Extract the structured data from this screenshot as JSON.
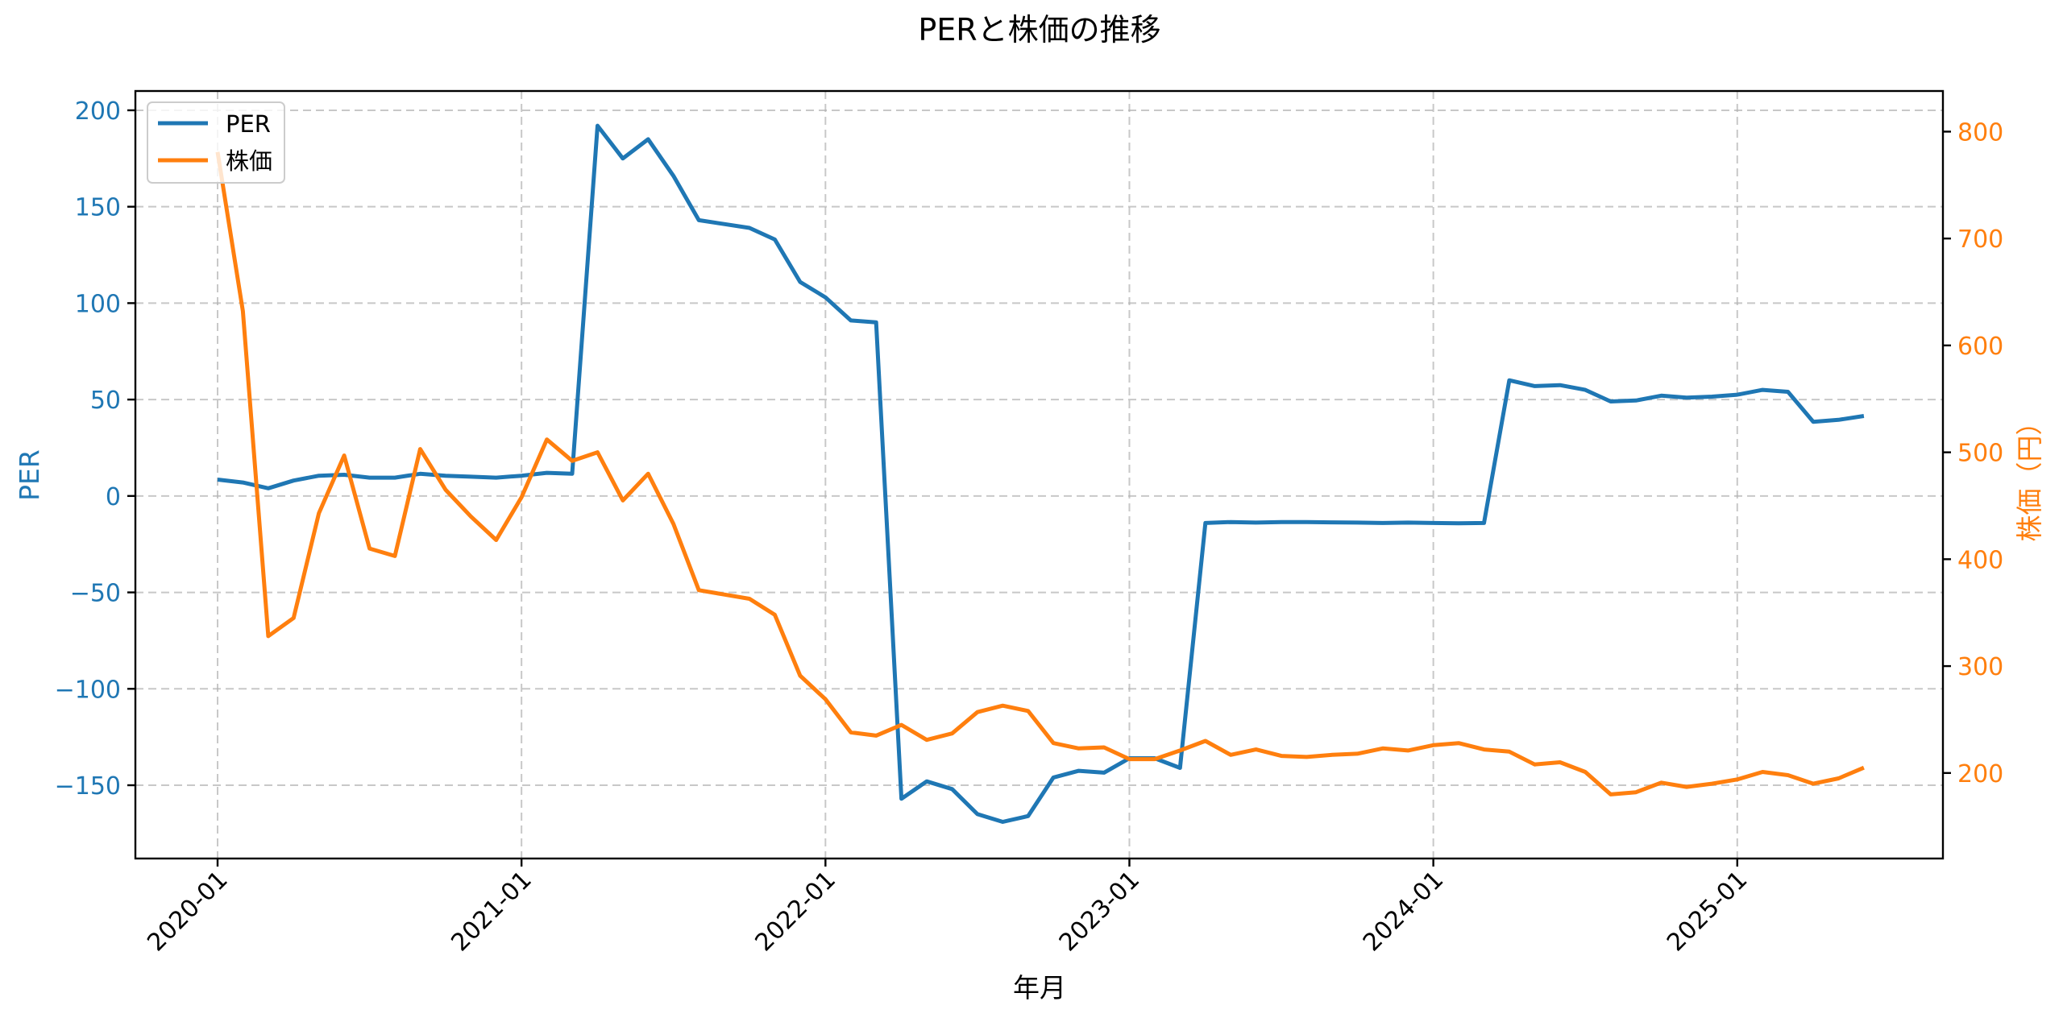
{
  "chart_data": {
    "type": "line",
    "title": "PERと株価の推移",
    "xlabel": "年月",
    "ylabel": "PER",
    "ylabel_right": "株価（円）",
    "grid": true,
    "grid_style": "dashed",
    "legend_position": "upper left",
    "legend": [
      "PER",
      "株価"
    ],
    "colors": {
      "PER": "#1f77b4",
      "株価": "#ff7f0e"
    },
    "x_tick_labels": [
      "2020-01",
      "2021-01",
      "2022-01",
      "2023-01",
      "2024-01",
      "2025-01"
    ],
    "x_tick_index": [
      0,
      12,
      24,
      36,
      48,
      60
    ],
    "y_left_ticks": [
      200,
      150,
      100,
      50,
      0,
      -50,
      -100,
      -150
    ],
    "y_left_tick_labels": [
      "200",
      "150",
      "100",
      "50",
      "0",
      "−50",
      "−100",
      "−150"
    ],
    "y_left_lim": [
      -188,
      210
    ],
    "y_right_ticks": [
      800,
      700,
      600,
      500,
      400,
      300,
      200
    ],
    "y_right_tick_labels": [
      "800",
      "700",
      "600",
      "500",
      "400",
      "300",
      "200"
    ],
    "y_right_lim": [
      120,
      838
    ],
    "x": [
      "2020-01",
      "2020-02",
      "2020-03",
      "2020-04",
      "2020-05",
      "2020-06",
      "2020-07",
      "2020-08",
      "2020-09",
      "2020-10",
      "2020-11",
      "2020-12",
      "2021-01",
      "2021-02",
      "2021-03",
      "2021-04",
      "2021-05",
      "2021-06",
      "2021-07",
      "2021-08",
      "2021-09",
      "2021-10",
      "2021-11",
      "2021-12",
      "2022-01",
      "2022-02",
      "2022-03",
      "2022-04",
      "2022-05",
      "2022-06",
      "2022-07",
      "2022-08",
      "2022-09",
      "2022-10",
      "2022-11",
      "2022-12",
      "2023-01",
      "2023-02",
      "2023-03",
      "2023-04",
      "2023-05",
      "2023-06",
      "2023-07",
      "2023-08",
      "2023-09",
      "2023-10",
      "2023-11",
      "2023-12",
      "2024-01",
      "2024-02",
      "2024-03",
      "2024-04",
      "2024-05",
      "2024-06",
      "2024-07",
      "2024-08",
      "2024-09",
      "2024-10",
      "2024-11",
      "2024-12",
      "2025-01",
      "2025-02",
      "2025-03",
      "2025-04",
      "2025-05",
      "2025-06"
    ],
    "series": [
      {
        "name": "PER",
        "axis": "left",
        "values": [
          8.5,
          7,
          4,
          8,
          10.5,
          11,
          9.5,
          9.5,
          11.5,
          10.5,
          10,
          9.5,
          10.5,
          12,
          11.5,
          192,
          175,
          185,
          166,
          143,
          141,
          139,
          133,
          111,
          103,
          91,
          90,
          -157,
          -148,
          -152,
          -165,
          -169,
          -166,
          -146,
          -142.5,
          -143.5,
          -136,
          -136,
          -141,
          -14,
          -13.5,
          -13.8,
          -13.5,
          -13.5,
          -13.7,
          -13.8,
          -14,
          -13.8,
          -14,
          -14.2,
          -14,
          60,
          57,
          57.5,
          55,
          49,
          49.5,
          52,
          51,
          51.5,
          52.5,
          55,
          54,
          38.5,
          39.5,
          41.5
        ]
      },
      {
        "name": "株価",
        "axis": "right",
        "values": [
          781,
          632,
          328,
          345,
          443,
          497,
          410,
          403,
          503,
          465,
          440,
          418,
          458,
          512,
          492,
          500,
          455,
          480,
          433,
          371,
          367,
          363,
          348,
          291,
          269,
          238,
          235,
          245,
          231,
          237,
          257,
          263,
          258,
          228,
          223,
          224,
          213,
          213,
          221,
          230,
          217,
          222,
          216,
          215,
          217,
          218,
          223,
          221,
          226,
          228,
          222,
          220,
          208,
          210,
          201,
          180,
          182,
          191,
          187,
          190,
          194,
          201,
          198,
          190,
          195,
          205
        ]
      }
    ]
  }
}
